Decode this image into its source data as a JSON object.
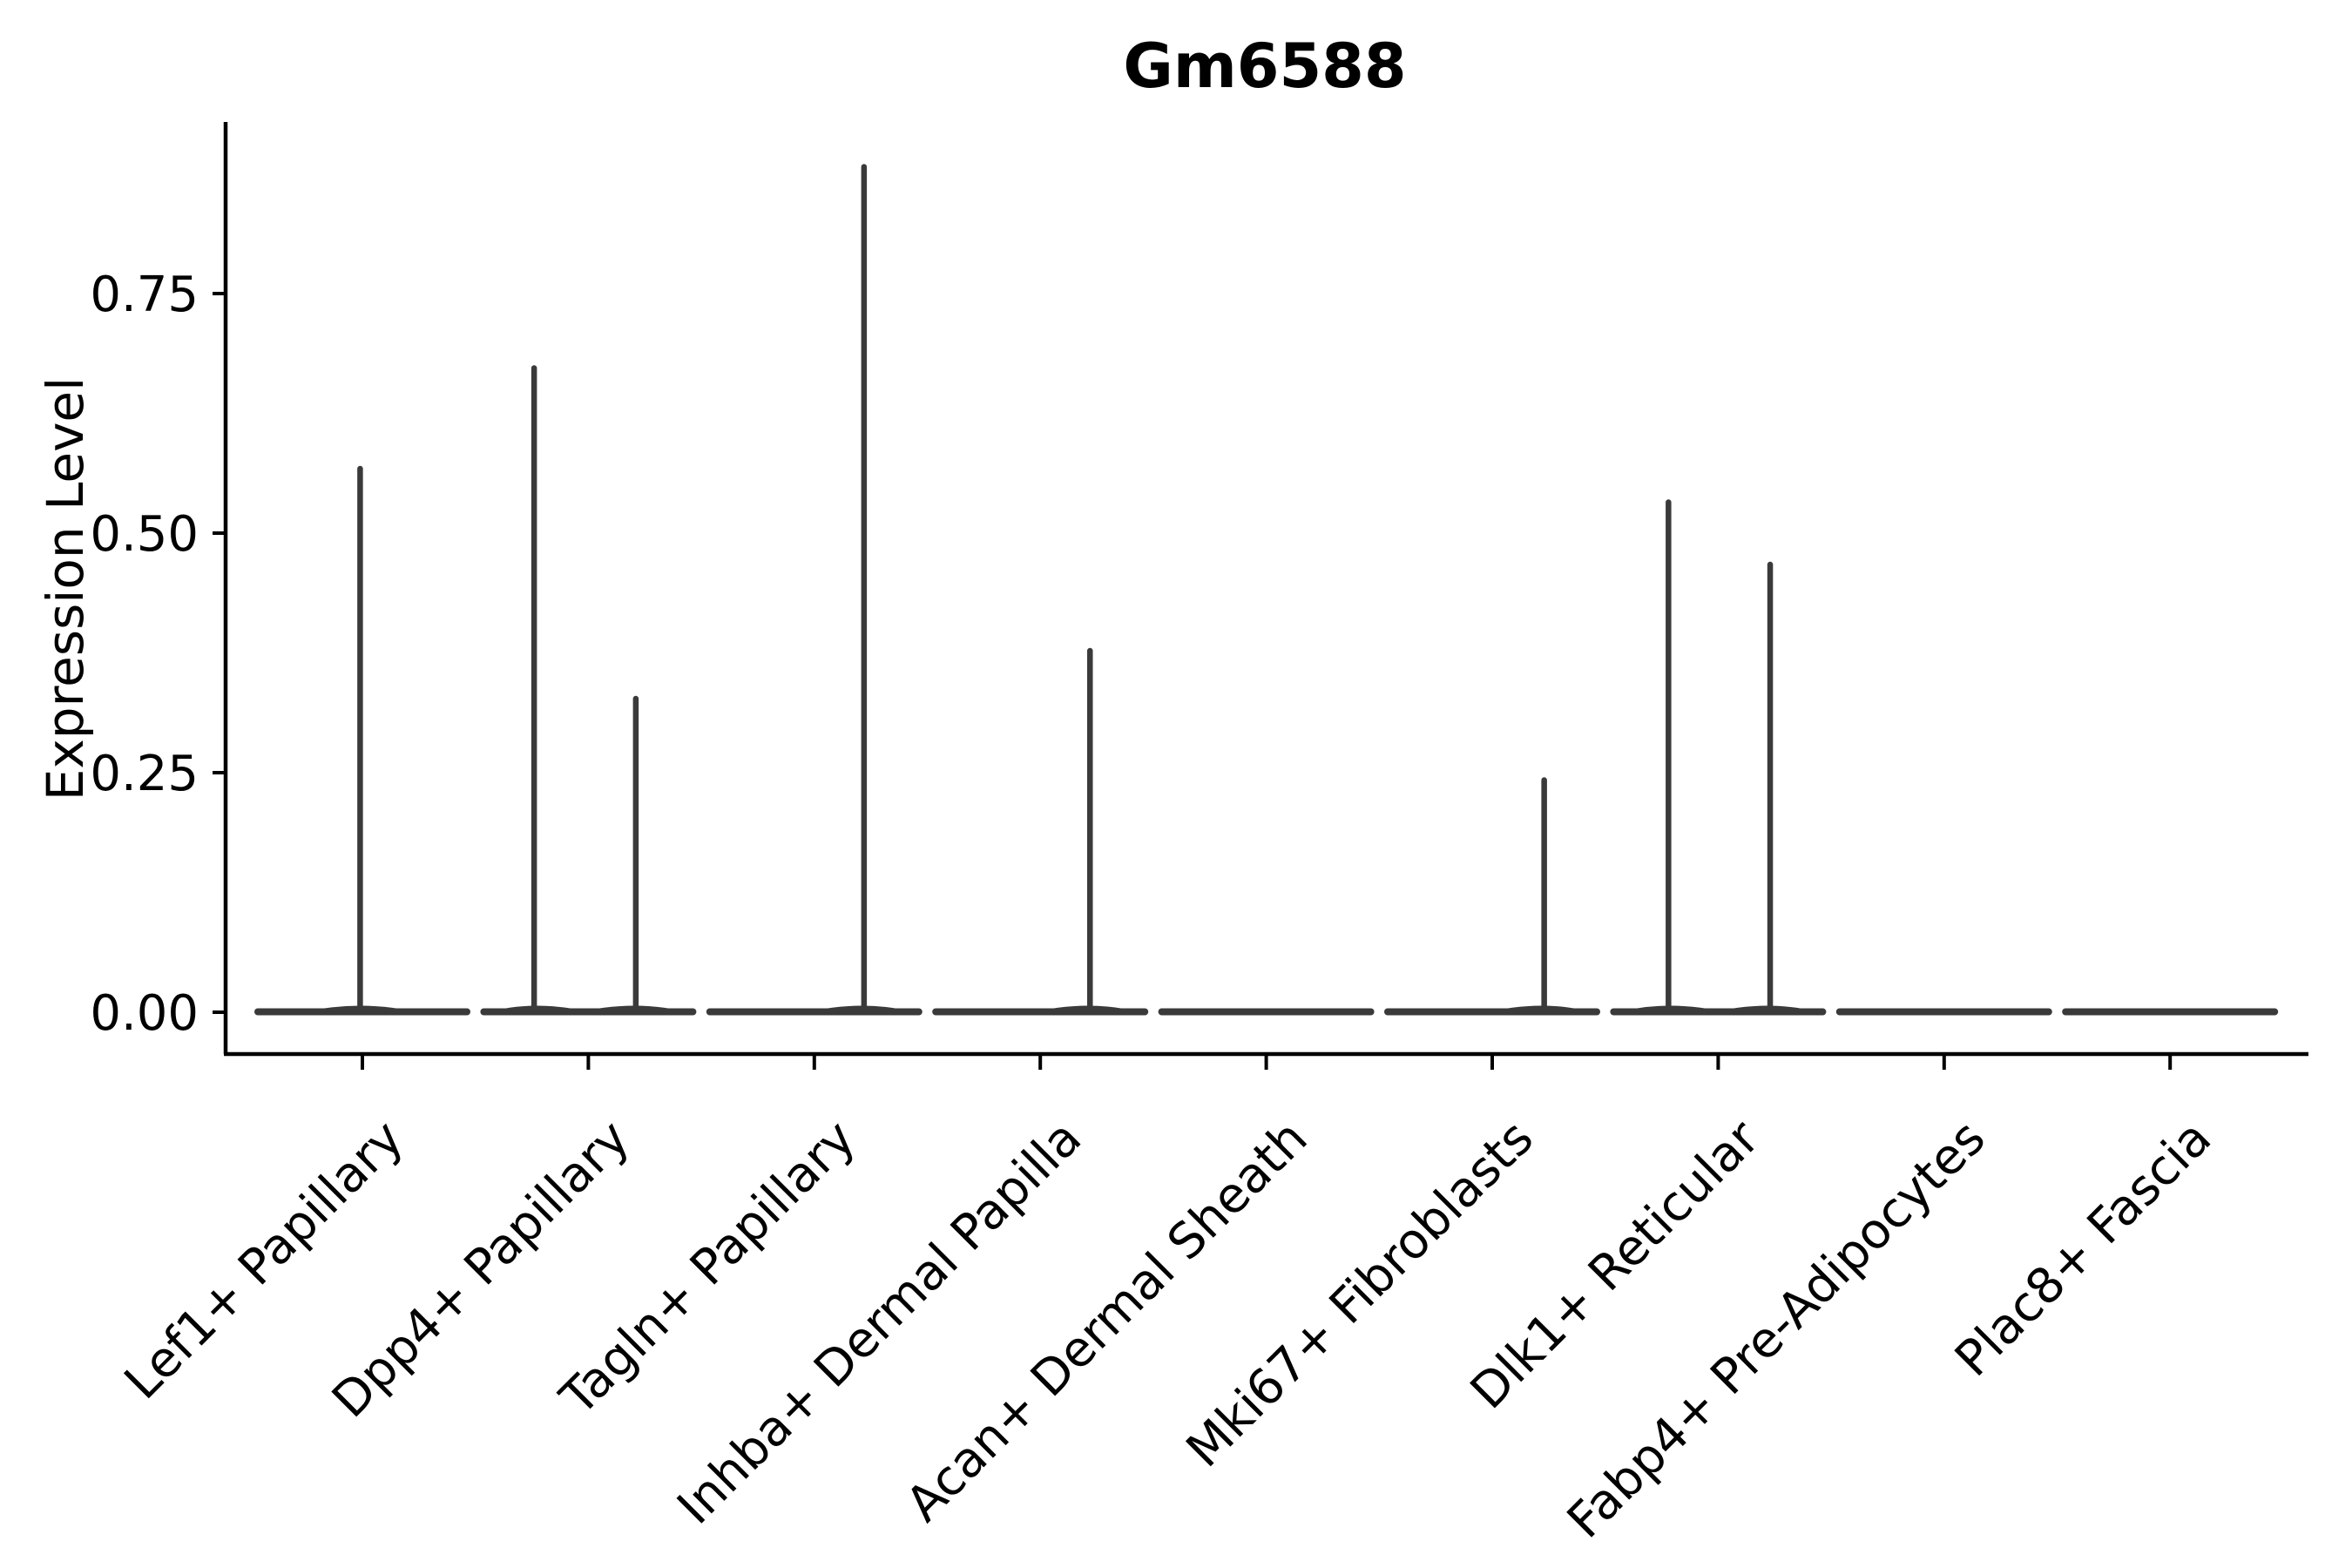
{
  "colors": {
    "background": "#ffffff",
    "text": "#000000",
    "violin": "#3a3a3a"
  },
  "chart_data": {
    "type": "violin",
    "title": "Gm6588",
    "xlabel": "",
    "ylabel": "Expression Level",
    "grid": false,
    "legend": null,
    "ylim": [
      -0.043,
      0.93
    ],
    "ytick_labels": [
      "0.00",
      "0.25",
      "0.50",
      "0.75"
    ],
    "ytick_values": [
      0.0,
      0.25,
      0.5,
      0.75
    ],
    "categories": [
      "Lef1+ Papillary",
      "Dpp4+ Papillary",
      "Tagln+ Papillary",
      "Inhba+ Dermal Papilla",
      "Acan+ Dermal Sheath",
      "Mki67+ Fibroblasts",
      "Dlk1+ Reticular",
      "Fabp4+ Pre-Adipocytes",
      "Plac8+ Fascia"
    ],
    "series": [
      {
        "category": "Lef1+ Papillary",
        "baseline_value": 0.0,
        "spikes": [
          {
            "value": 0.57,
            "x_offset": -0.01
          }
        ]
      },
      {
        "category": "Dpp4+ Papillary",
        "baseline_value": 0.0,
        "spikes": [
          {
            "value": 0.675,
            "x_offset": -0.24
          },
          {
            "value": 0.33,
            "x_offset": 0.21
          }
        ]
      },
      {
        "category": "Tagln+ Papillary",
        "baseline_value": 0.0,
        "spikes": [
          {
            "value": 0.885,
            "x_offset": 0.22
          }
        ]
      },
      {
        "category": "Inhba+ Dermal Papilla",
        "baseline_value": 0.0,
        "spikes": [
          {
            "value": 0.38,
            "x_offset": 0.22
          }
        ]
      },
      {
        "category": "Acan+ Dermal Sheath",
        "baseline_value": 0.0,
        "spikes": []
      },
      {
        "category": "Mki67+ Fibroblasts",
        "baseline_value": 0.0,
        "spikes": [
          {
            "value": 0.245,
            "x_offset": 0.23
          }
        ]
      },
      {
        "category": "Dlk1+ Reticular",
        "baseline_value": 0.0,
        "spikes": [
          {
            "value": 0.535,
            "x_offset": -0.22
          },
          {
            "value": 0.47,
            "x_offset": 0.23
          }
        ]
      },
      {
        "category": "Fabp4+ Pre-Adipocytes",
        "baseline_value": 0.0,
        "spikes": []
      },
      {
        "category": "Plac8+ Fascia",
        "baseline_value": 0.0,
        "spikes": []
      }
    ]
  }
}
